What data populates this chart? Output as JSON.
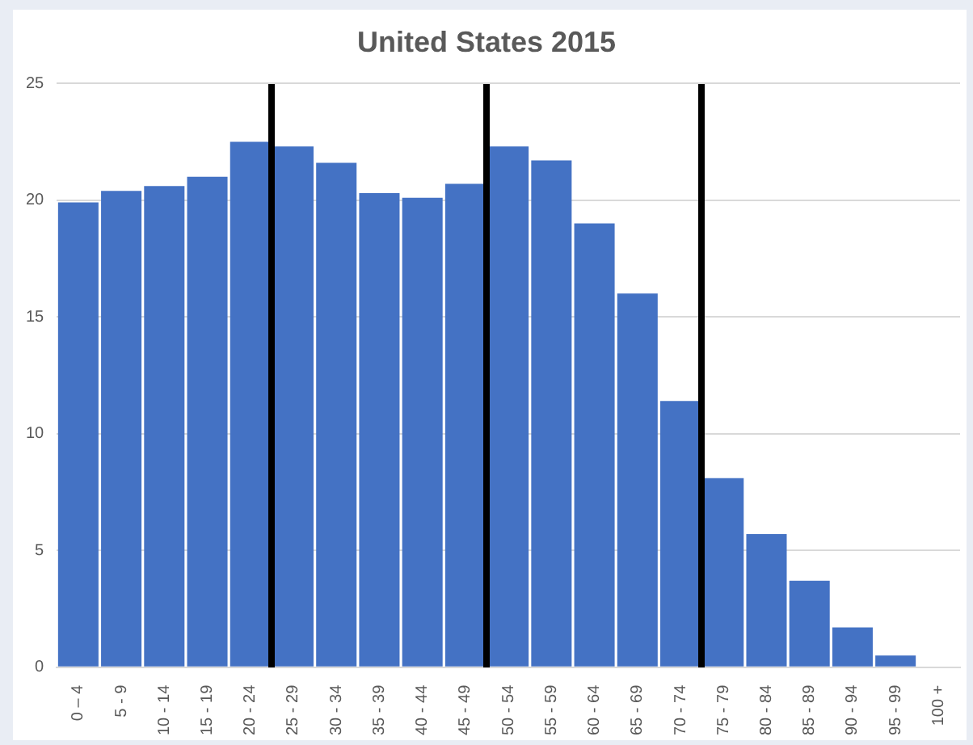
{
  "chart_data": {
    "type": "bar",
    "title": "United States 2015",
    "categories": [
      "0 – 4",
      "5 - 9",
      "10 - 14",
      "15 - 19",
      "20 - 24",
      "25 - 29",
      "30 - 34",
      "35 - 39",
      "40 - 44",
      "45 - 49",
      "50 - 54",
      "55 - 59",
      "60 - 64",
      "65 - 69",
      "70 - 74",
      "75 - 79",
      "80 - 84",
      "85 - 89",
      "90 - 94",
      "95 - 99",
      "100 +"
    ],
    "values": [
      19.9,
      20.4,
      20.6,
      21.0,
      22.5,
      22.3,
      21.6,
      20.3,
      20.1,
      20.7,
      22.3,
      21.7,
      19.0,
      16.0,
      11.4,
      8.1,
      5.7,
      3.7,
      1.7,
      0.5,
      0
    ],
    "color": "#4472c4",
    "ylim": [
      0,
      25
    ],
    "yticks": [
      0,
      5,
      10,
      15,
      20,
      25
    ],
    "grid": "y"
  }
}
